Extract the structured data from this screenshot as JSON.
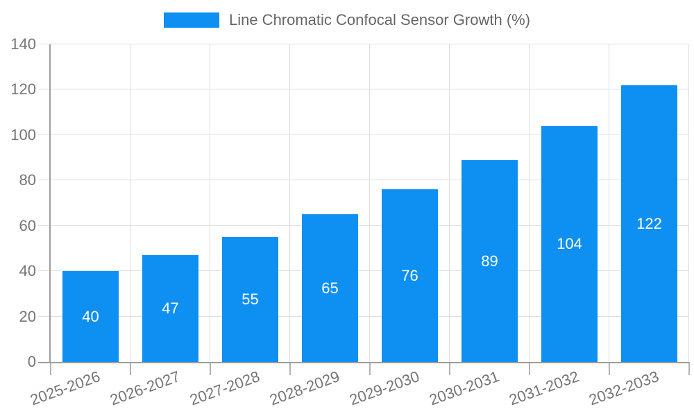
{
  "legend": {
    "label": "Line Chromatic Confocal Sensor Growth (%)"
  },
  "chart_data": {
    "type": "bar",
    "title": "Line Chromatic Confocal Sensor Growth (%)",
    "categories": [
      "2025-2026",
      "2026-2027",
      "2027-2028",
      "2028-2029",
      "2029-2030",
      "2030-2031",
      "2031-2032",
      "2032-2033"
    ],
    "values": [
      40,
      47,
      55,
      65,
      76,
      89,
      104,
      122
    ],
    "xlabel": "",
    "ylabel": "",
    "ylim": [
      0,
      140
    ],
    "yticks": [
      0,
      20,
      40,
      60,
      80,
      100,
      120,
      140
    ],
    "grid": true,
    "legend_position": "top",
    "bar_color": "#0E8FF2",
    "value_label_color": "#ffffff",
    "grid_color": "#dedede",
    "axis_color": "#9c9c9c",
    "tick_color": "#b3b3b3",
    "tick_label_color": "#757575",
    "legend_text_color": "#666666"
  }
}
